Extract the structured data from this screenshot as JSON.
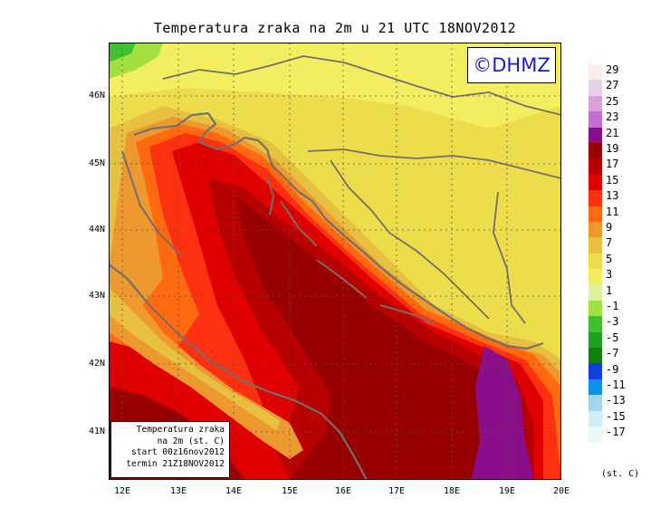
{
  "title": "Temperatura zraka na 2m u 21 UTC 18NOV2012",
  "watermark": "©DHMZ",
  "info": {
    "line1": "Temperatura zraka",
    "line2": "na 2m (st. C)",
    "line3": "start 00z16nov2012",
    "line4": "termin 21Z18NOV2012"
  },
  "lat_labels": [
    "46N",
    "45N",
    "44N",
    "43N",
    "42N",
    "41N"
  ],
  "lon_labels": [
    "12E",
    "13E",
    "14E",
    "15E",
    "16E",
    "17E",
    "18E",
    "19E",
    "20E"
  ],
  "legend": {
    "labels": [
      "29",
      "27",
      "25",
      "23",
      "21",
      "19",
      "17",
      "15",
      "13",
      "11",
      "9",
      "7",
      "5",
      "3",
      "1",
      "-1",
      "-3",
      "-5",
      "-7",
      "-9",
      "-11",
      "-13",
      "-15",
      "-17"
    ],
    "colors": [
      "#fbeee6",
      "#e6d0e6",
      "#d9a0d9",
      "#c070d0",
      "#8a0d8a",
      "#990000",
      "#b80000",
      "#e00000",
      "#ff3010",
      "#ff6a10",
      "#ee9930",
      "#e8c040",
      "#eedd4a",
      "#f3ee60",
      "#dcf0a0",
      "#a0e040",
      "#40c030",
      "#20a020",
      "#108010",
      "#1040e0",
      "#1090f0",
      "#a0d8ea",
      "#d0eef4",
      "#e8f8f8"
    ],
    "unit": "(st. C)"
  },
  "colors": {
    "sea_deep": "#990000",
    "coast": "#707070",
    "purple": "#8a0d8a",
    "land_yellow": "#eedd4a"
  }
}
